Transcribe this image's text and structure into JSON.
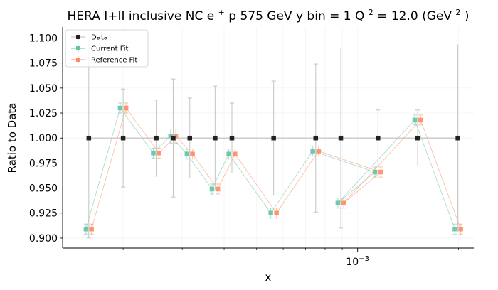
{
  "chart_data": {
    "type": "line",
    "title_main": "HERA I+II inclusive NC e",
    "title_sup1": "+",
    "title_mid": "p 575 GeV y bin = 1 Q",
    "title_sup2": "2",
    "title_end": " = 12.0 (GeV",
    "title_sup3": "2",
    "title_close": ")",
    "xlabel": "x",
    "ylabel": "Ratio to Data",
    "xscale": "log",
    "xlim": [
      0.000132,
      0.00222
    ],
    "ylim": [
      0.89,
      1.111
    ],
    "yticks": [
      0.9,
      0.925,
      0.95,
      0.975,
      1.0,
      1.025,
      1.05,
      1.075,
      1.1
    ],
    "ytick_labels": [
      "0.900",
      "0.925",
      "0.950",
      "0.975",
      "1.000",
      "1.025",
      "1.050",
      "1.075",
      "1.100"
    ],
    "xtick_major": [
      0.001
    ],
    "xtick_major_labels": [
      "10",
      "−3"
    ],
    "xtick_minor": [
      0.0002,
      0.0003,
      0.0004,
      0.0005,
      0.0006,
      0.0007,
      0.0008,
      0.0009,
      0.002
    ],
    "grid": true,
    "legend_position": "top-left",
    "series": [
      {
        "name": "Data",
        "color": "#222222",
        "marker": "square",
        "x": [
          0.000158,
          0.0002,
          0.000251,
          0.000282,
          0.000316,
          0.000376,
          0.000422,
          0.000562,
          0.00075,
          0.00115,
          0.000891,
          0.00151,
          0.00199
        ],
        "y": [
          1.0,
          1.0,
          1.0,
          1.0,
          1.0,
          1.0,
          1.0,
          1.0,
          1.0,
          1.0,
          1.0,
          1.0,
          1.0
        ],
        "err": [
          0.1,
          0.049,
          0.038,
          0.059,
          0.04,
          0.052,
          0.035,
          0.057,
          0.074,
          0.028,
          0.09,
          0.028,
          0.093
        ]
      },
      {
        "name": "Current Fit",
        "color": "#66c2a5",
        "marker": "square",
        "x": [
          0.000155,
          0.000196,
          0.000246,
          0.000277,
          0.00031,
          0.000368,
          0.000413,
          0.000551,
          0.000735,
          0.001127,
          0.000873,
          0.00148,
          0.00195
        ],
        "y": [
          0.909,
          1.03,
          0.985,
          1.002,
          0.984,
          0.949,
          0.984,
          0.925,
          0.987,
          0.966,
          0.935,
          1.018,
          0.909
        ],
        "err": [
          0.005,
          0.005,
          0.005,
          0.007,
          0.005,
          0.005,
          0.005,
          0.005,
          0.005,
          0.005,
          0.005,
          0.005,
          0.005
        ]
      },
      {
        "name": "Reference Fit",
        "color": "#fc8d62",
        "marker": "square",
        "x": [
          0.000161,
          0.000204,
          0.000256,
          0.000287,
          0.000322,
          0.000383,
          0.000431,
          0.000573,
          0.000765,
          0.001173,
          0.000909,
          0.00154,
          0.00203
        ],
        "y": [
          0.909,
          1.03,
          0.985,
          1.002,
          0.984,
          0.949,
          0.984,
          0.925,
          0.987,
          0.966,
          0.935,
          1.018,
          0.909
        ],
        "err": [
          0.005,
          0.005,
          0.005,
          0.007,
          0.005,
          0.005,
          0.005,
          0.005,
          0.005,
          0.005,
          0.005,
          0.005,
          0.005
        ]
      }
    ]
  }
}
